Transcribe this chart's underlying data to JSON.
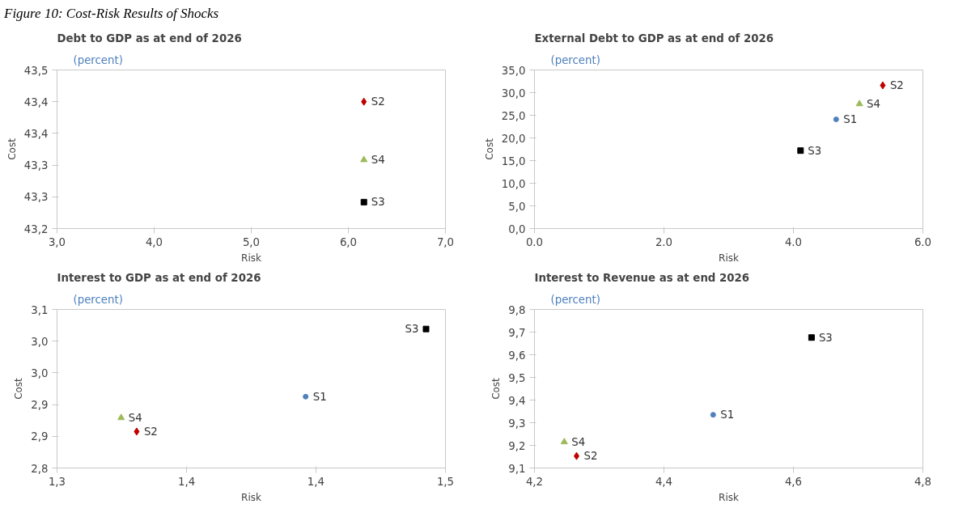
{
  "chart_data": [
    {
      "type": "scatter",
      "title": "Debt to GDP as at end of 2026",
      "subtitle": "(percent)",
      "xlabel": "Risk",
      "ylabel": "Cost",
      "annotations": [
        "Figure 10: Cost-Risk Results of Shocks"
      ],
      "xlim": [
        3.0,
        7.0
      ],
      "ylim": [
        43.2,
        43.5
      ],
      "xticks": [
        {
          "value": 3.0,
          "label": "3,0"
        },
        {
          "value": 4.0,
          "label": "4,0"
        },
        {
          "value": 5.0,
          "label": "5,0"
        },
        {
          "value": 6.0,
          "label": "6,0"
        },
        {
          "value": 7.0,
          "label": "7,0"
        }
      ],
      "yticks": [
        {
          "value": 43.2,
          "label": "43,2"
        },
        {
          "value": 43.26,
          "label": "43,3"
        },
        {
          "value": 43.32,
          "label": "43,3"
        },
        {
          "value": 43.38,
          "label": "43,4"
        },
        {
          "value": 43.44,
          "label": "43,4"
        },
        {
          "value": 43.5,
          "label": "43,5"
        }
      ],
      "series": [
        {
          "name": "S2",
          "color": "#c00000",
          "marker": "diamond",
          "x": [
            6.16
          ],
          "values": [
            43.44
          ]
        },
        {
          "name": "S4",
          "color": "#9bbb59",
          "marker": "triangle",
          "x": [
            6.16
          ],
          "values": [
            43.33
          ]
        },
        {
          "name": "S3",
          "color": "#000000",
          "marker": "square",
          "x": [
            6.16
          ],
          "values": [
            43.25
          ]
        }
      ]
    },
    {
      "type": "scatter",
      "title": "External Debt to GDP as at end of 2026",
      "subtitle": "(percent)",
      "xlabel": "Risk",
      "ylabel": "Cost",
      "xlim": [
        0.0,
        6.0
      ],
      "ylim": [
        0.0,
        35.0
      ],
      "xticks": [
        {
          "value": 0.0,
          "label": "0.0"
        },
        {
          "value": 2.0,
          "label": "2.0"
        },
        {
          "value": 4.0,
          "label": "4.0"
        },
        {
          "value": 6.0,
          "label": "6.0"
        }
      ],
      "yticks": [
        {
          "value": 0.0,
          "label": "0,0"
        },
        {
          "value": 5.0,
          "label": "5,0"
        },
        {
          "value": 10.0,
          "label": "10,0"
        },
        {
          "value": 15.0,
          "label": "15,0"
        },
        {
          "value": 20.0,
          "label": "20,0"
        },
        {
          "value": 25.0,
          "label": "25,0"
        },
        {
          "value": 30.0,
          "label": "30,0"
        },
        {
          "value": 35.0,
          "label": "35,0"
        }
      ],
      "series": [
        {
          "name": "S2",
          "color": "#c00000",
          "marker": "diamond",
          "x": [
            5.38
          ],
          "values": [
            31.6
          ]
        },
        {
          "name": "S4",
          "color": "#9bbb59",
          "marker": "triangle",
          "x": [
            5.02
          ],
          "values": [
            27.5
          ]
        },
        {
          "name": "S1",
          "color": "#4f81bd",
          "marker": "circle",
          "x": [
            4.66
          ],
          "values": [
            24.1
          ]
        },
        {
          "name": "S3",
          "color": "#000000",
          "marker": "square",
          "x": [
            4.11
          ],
          "values": [
            17.2
          ]
        }
      ]
    },
    {
      "type": "scatter",
      "title": "Interest to GDP as at end of 2026",
      "subtitle": "(percent)",
      "xlabel": "Risk",
      "ylabel": "Cost",
      "xlim": [
        1.3,
        1.5
      ],
      "ylim": [
        2.8,
        3.1
      ],
      "xticks": [
        {
          "value": 1.3,
          "label": "1,3"
        },
        {
          "value": 1.3667,
          "label": "1,4"
        },
        {
          "value": 1.4333,
          "label": "1,4"
        },
        {
          "value": 1.5,
          "label": "1,5"
        }
      ],
      "yticks": [
        {
          "value": 2.8,
          "label": "2,8"
        },
        {
          "value": 2.86,
          "label": "2,9"
        },
        {
          "value": 2.92,
          "label": "2,9"
        },
        {
          "value": 2.98,
          "label": "3,0"
        },
        {
          "value": 3.04,
          "label": "3,0"
        },
        {
          "value": 3.1,
          "label": "3,1"
        }
      ],
      "series": [
        {
          "name": "S3",
          "color": "#000000",
          "marker": "square",
          "x": [
            1.49
          ],
          "values": [
            3.063
          ]
        },
        {
          "name": "S1",
          "color": "#4f81bd",
          "marker": "circle",
          "x": [
            1.428
          ],
          "values": [
            2.935
          ]
        },
        {
          "name": "S4",
          "color": "#9bbb59",
          "marker": "triangle",
          "x": [
            1.333
          ],
          "values": [
            2.895
          ]
        },
        {
          "name": "S2",
          "color": "#c00000",
          "marker": "diamond",
          "x": [
            1.341
          ],
          "values": [
            2.869
          ]
        }
      ]
    },
    {
      "type": "scatter",
      "title": "Interest to Revenue as at end 2026",
      "subtitle": "(percent)",
      "xlabel": "Risk",
      "ylabel": "Cost",
      "xlim": [
        4.2,
        4.8
      ],
      "ylim": [
        9.1,
        9.8
      ],
      "xticks": [
        {
          "value": 4.2,
          "label": "4,2"
        },
        {
          "value": 4.4,
          "label": "4,4"
        },
        {
          "value": 4.6,
          "label": "4,6"
        },
        {
          "value": 4.8,
          "label": "4,8"
        }
      ],
      "yticks": [
        {
          "value": 9.1,
          "label": "9,1"
        },
        {
          "value": 9.2,
          "label": "9,2"
        },
        {
          "value": 9.3,
          "label": "9,3"
        },
        {
          "value": 9.4,
          "label": "9,4"
        },
        {
          "value": 9.5,
          "label": "9,5"
        },
        {
          "value": 9.6,
          "label": "9,6"
        },
        {
          "value": 9.7,
          "label": "9,7"
        },
        {
          "value": 9.8,
          "label": "9,8"
        }
      ],
      "series": [
        {
          "name": "S3",
          "color": "#000000",
          "marker": "square",
          "x": [
            4.628
          ],
          "values": [
            9.676
          ]
        },
        {
          "name": "S1",
          "color": "#4f81bd",
          "marker": "circle",
          "x": [
            4.476
          ],
          "values": [
            9.335
          ]
        },
        {
          "name": "S4",
          "color": "#9bbb59",
          "marker": "triangle",
          "x": [
            4.246
          ],
          "values": [
            9.215
          ]
        },
        {
          "name": "S2",
          "color": "#c00000",
          "marker": "diamond",
          "x": [
            4.265
          ],
          "values": [
            9.153
          ]
        }
      ]
    }
  ]
}
